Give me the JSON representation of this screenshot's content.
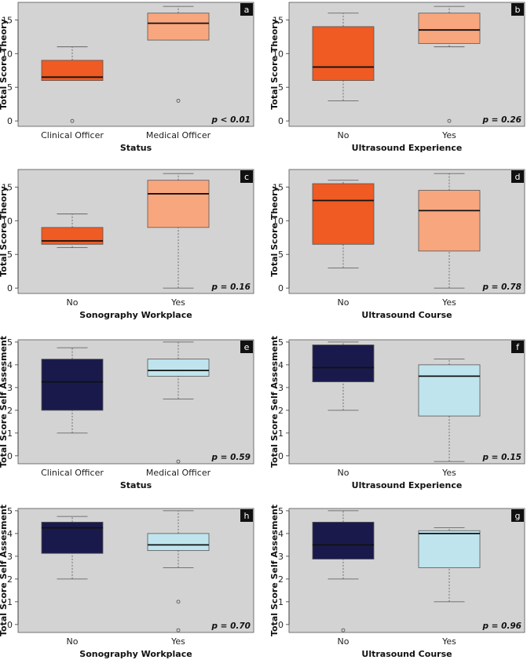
{
  "chart_data": [
    {
      "id": "a",
      "type": "box",
      "ylabel": "Total Score Theory",
      "xlabel": "Status",
      "ylim": [
        -0.8,
        17.6
      ],
      "yticks": [
        0,
        5,
        10,
        15
      ],
      "pvalue": "p < 0.01",
      "boxes": [
        {
          "label": "Clinical Officer",
          "color": "#f05a23",
          "whisker_low": 6,
          "q1": 6,
          "median": 6.5,
          "q3": 9,
          "whisker_high": 11,
          "outliers": [
            0
          ]
        },
        {
          "label": "Medical Officer",
          "color": "#f8a67e",
          "whisker_low": 12,
          "q1": 12,
          "median": 14.5,
          "q3": 16,
          "whisker_high": 17,
          "outliers": [
            3
          ]
        }
      ]
    },
    {
      "id": "b",
      "type": "box",
      "ylabel": "Total Score Theory",
      "xlabel": "Ultrasound Experience",
      "ylim": [
        -0.8,
        17.6
      ],
      "yticks": [
        0,
        5,
        10,
        15
      ],
      "pvalue": "p = 0.26",
      "boxes": [
        {
          "label": "No",
          "color": "#f05a23",
          "whisker_low": 3,
          "q1": 6,
          "median": 8,
          "q3": 14,
          "whisker_high": 16,
          "outliers": []
        },
        {
          "label": "Yes",
          "color": "#f8a67e",
          "whisker_low": 11,
          "q1": 11.5,
          "median": 13.5,
          "q3": 16,
          "whisker_high": 17,
          "outliers": [
            0
          ]
        }
      ]
    },
    {
      "id": "c",
      "type": "box",
      "ylabel": "Total Score Theory",
      "xlabel": "Sonography Workplace",
      "ylim": [
        -0.8,
        17.6
      ],
      "yticks": [
        0,
        5,
        10,
        15
      ],
      "pvalue": "p = 0.16",
      "boxes": [
        {
          "label": "No",
          "color": "#f05a23",
          "whisker_low": 6,
          "q1": 6.5,
          "median": 7,
          "q3": 9,
          "whisker_high": 11,
          "outliers": []
        },
        {
          "label": "Yes",
          "color": "#f8a67e",
          "whisker_low": 0,
          "q1": 9,
          "median": 14,
          "q3": 16,
          "whisker_high": 17,
          "outliers": []
        }
      ]
    },
    {
      "id": "d",
      "type": "box",
      "ylabel": "Total Score Theory",
      "xlabel": "Ultrasound Course",
      "ylim": [
        -0.8,
        17.6
      ],
      "yticks": [
        0,
        5,
        10,
        15
      ],
      "pvalue": "p = 0.78",
      "boxes": [
        {
          "label": "No",
          "color": "#f05a23",
          "whisker_low": 3,
          "q1": 6.5,
          "median": 13,
          "q3": 15.5,
          "whisker_high": 16,
          "outliers": []
        },
        {
          "label": "Yes",
          "color": "#f8a67e",
          "whisker_low": 0,
          "q1": 5.5,
          "median": 11.5,
          "q3": 14.5,
          "whisker_high": 17,
          "outliers": []
        }
      ]
    },
    {
      "id": "e",
      "type": "box",
      "ylabel": "Total Score Self Assesment",
      "xlabel": "Status",
      "ylim": [
        -0.35,
        5.1
      ],
      "yticks": [
        0,
        1,
        2,
        3,
        4,
        5
      ],
      "pvalue": "p = 0.59",
      "boxes": [
        {
          "label": "Clinical Officer",
          "color": "#191a4b",
          "whisker_low": 1,
          "q1": 2,
          "median": 3.25,
          "q3": 4.25,
          "whisker_high": 4.75,
          "outliers": []
        },
        {
          "label": "Medical Officer",
          "color": "#bfe4ee",
          "whisker_low": 2.5,
          "q1": 3.5,
          "median": 3.75,
          "q3": 4.25,
          "whisker_high": 5,
          "outliers": [
            -0.25
          ]
        }
      ]
    },
    {
      "id": "f",
      "type": "box",
      "ylabel": "Total Score Self Assesment",
      "xlabel": "Ultrasound Experience",
      "ylim": [
        -0.35,
        5.1
      ],
      "yticks": [
        0,
        1,
        2,
        3,
        4,
        5
      ],
      "pvalue": "p = 0.15",
      "boxes": [
        {
          "label": "No",
          "color": "#191a4b",
          "whisker_low": 2,
          "q1": 3.25,
          "median": 3.875,
          "q3": 4.875,
          "whisker_high": 5,
          "outliers": []
        },
        {
          "label": "Yes",
          "color": "#bfe4ee",
          "whisker_low": -0.25,
          "q1": 1.75,
          "median": 3.5,
          "q3": 4,
          "whisker_high": 4.25,
          "outliers": []
        }
      ]
    },
    {
      "id": "h",
      "type": "box",
      "ylabel": "Total Score Self Assesment",
      "xlabel": "Sonography Workplace",
      "ylim": [
        -0.35,
        5.1
      ],
      "yticks": [
        0,
        1,
        2,
        3,
        4,
        5
      ],
      "pvalue": "p = 0.70",
      "boxes": [
        {
          "label": "No",
          "color": "#191a4b",
          "whisker_low": 2,
          "q1": 3.125,
          "median": 4.25,
          "q3": 4.5,
          "whisker_high": 4.75,
          "outliers": []
        },
        {
          "label": "Yes",
          "color": "#bfe4ee",
          "whisker_low": 2.5,
          "q1": 3.25,
          "median": 3.5,
          "q3": 4,
          "whisker_high": 5,
          "outliers": [
            1,
            -0.25
          ]
        }
      ]
    },
    {
      "id": "g",
      "type": "box",
      "ylabel": "Total Score Self Assesment",
      "xlabel": "Ultrasound Course",
      "ylim": [
        -0.35,
        5.1
      ],
      "yticks": [
        0,
        1,
        2,
        3,
        4,
        5
      ],
      "pvalue": "p = 0.96",
      "boxes": [
        {
          "label": "No",
          "color": "#191a4b",
          "whisker_low": 2,
          "q1": 2.875,
          "median": 3.5,
          "q3": 4.5,
          "whisker_high": 5,
          "outliers": [
            -0.25
          ]
        },
        {
          "label": "Yes",
          "color": "#bfe4ee",
          "whisker_low": 1,
          "q1": 2.5,
          "median": 4,
          "q3": 4.125,
          "whisker_high": 4.25,
          "outliers": []
        }
      ]
    }
  ]
}
